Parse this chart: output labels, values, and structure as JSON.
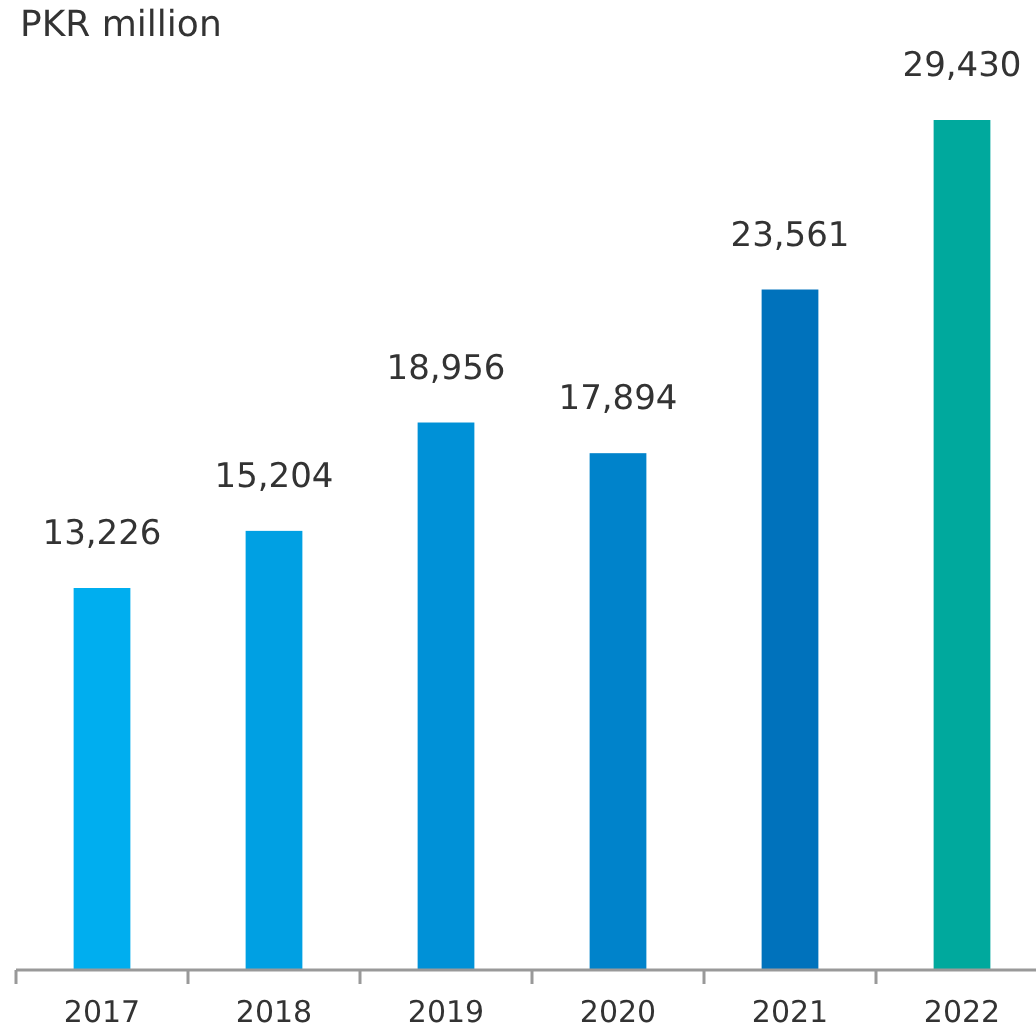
{
  "chart_data": {
    "type": "bar",
    "title": "PKR million",
    "categories": [
      "2017",
      "2018",
      "2019",
      "2020",
      "2021",
      "2022"
    ],
    "values": [
      13226,
      15204,
      18956,
      17894,
      23561,
      29430
    ],
    "colors": [
      "#00aeef",
      "#00a0e3",
      "#0091d7",
      "#0083cb",
      "#0072bc",
      "#00a99d"
    ],
    "value_labels": [
      "13,226",
      "15,204",
      "18,956",
      "17,894",
      "23,561",
      "29,430"
    ]
  }
}
